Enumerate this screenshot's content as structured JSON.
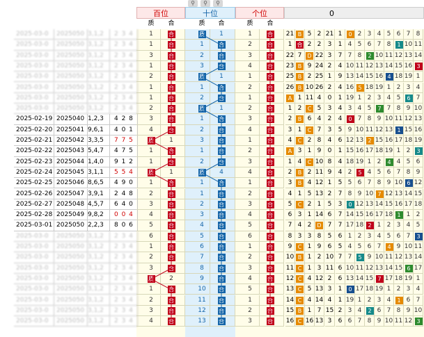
{
  "toolbar": {
    "zoom_out_icon": "zoom-out-icon",
    "zoom_in_icon": "zoom-in-icon",
    "zoom_reset_icon": "zoom-reset-icon"
  },
  "headers": {
    "bai": "百位",
    "shi": "十位",
    "ge": "个位",
    "zero": "0"
  },
  "sub": {
    "zhi": "质",
    "he": "合"
  },
  "rows": [
    {
      "date": "",
      "issue": "",
      "nums": "",
      "tri": "",
      "hidden": true
    },
    {
      "date": "",
      "issue": "",
      "nums": "",
      "tri": "",
      "hidden": true
    },
    {
      "date": "",
      "issue": "",
      "nums": "",
      "tri": "",
      "hidden": true
    },
    {
      "date": "",
      "issue": "",
      "nums": "",
      "tri": "",
      "hidden": true
    },
    {
      "date": "",
      "issue": "",
      "nums": "",
      "tri": "",
      "hidden": true
    },
    {
      "date": "",
      "issue": "",
      "nums": "",
      "tri": "",
      "hidden": true
    },
    {
      "date": "",
      "issue": "",
      "nums": "",
      "tri": "",
      "hidden": true
    },
    {
      "date": "",
      "issue": "",
      "nums": "",
      "tri": "",
      "hidden": true
    },
    {
      "date": "2025-02-19",
      "issue": "2025040",
      "nums": "1,2,3",
      "tri": "4 2 8",
      "hidden": false,
      "red": false
    },
    {
      "date": "2025-02-20",
      "issue": "2025041",
      "nums": "9,6,1",
      "tri": "4 0 1",
      "hidden": false,
      "red": false
    },
    {
      "date": "2025-02-21",
      "issue": "2025042",
      "nums": "3,3,5",
      "tri": "7 7 5",
      "hidden": false,
      "red": true
    },
    {
      "date": "2025-02-22",
      "issue": "2025043",
      "nums": "5,4,7",
      "tri": "4 7 5",
      "hidden": false,
      "red": false
    },
    {
      "date": "2025-02-23",
      "issue": "2025044",
      "nums": "1,4,0",
      "tri": "9 1 2",
      "hidden": false,
      "red": false
    },
    {
      "date": "2025-02-24",
      "issue": "2025045",
      "nums": "3,1,1",
      "tri": "5 5 4",
      "hidden": false,
      "red": true
    },
    {
      "date": "2025-02-25",
      "issue": "2025046",
      "nums": "8,6,5",
      "tri": "4 9 0",
      "hidden": false,
      "red": false
    },
    {
      "date": "2025-02-26",
      "issue": "2025047",
      "nums": "3,9,1",
      "tri": "2 4 8",
      "hidden": false,
      "red": false
    },
    {
      "date": "2025-02-27",
      "issue": "2025048",
      "nums": "4,5,7",
      "tri": "6 4 0",
      "hidden": false,
      "red": false
    },
    {
      "date": "2025-02-28",
      "issue": "2025049",
      "nums": "9,8,2",
      "tri": "0 0 4",
      "hidden": false,
      "red": true
    },
    {
      "date": "2025-03-01",
      "issue": "2025050",
      "nums": "2,2,3",
      "tri": "8 0 6",
      "hidden": false,
      "red": false
    },
    {
      "date": "",
      "issue": "",
      "nums": "",
      "tri": "",
      "hidden": true
    },
    {
      "date": "",
      "issue": "",
      "nums": "",
      "tri": "",
      "hidden": true
    },
    {
      "date": "",
      "issue": "",
      "nums": "",
      "tri": "",
      "hidden": true
    },
    {
      "date": "",
      "issue": "",
      "nums": "",
      "tri": "",
      "hidden": true
    },
    {
      "date": "",
      "issue": "",
      "nums": "",
      "tri": "",
      "hidden": true
    },
    {
      "date": "",
      "issue": "",
      "nums": "",
      "tri": "",
      "hidden": true
    },
    {
      "date": "",
      "issue": "",
      "nums": "",
      "tri": "",
      "hidden": true
    },
    {
      "date": "",
      "issue": "",
      "nums": "",
      "tri": "",
      "hidden": true
    },
    {
      "date": "",
      "issue": "",
      "nums": "",
      "tri": "",
      "hidden": true
    }
  ],
  "bai": [
    [
      1,
      "合"
    ],
    [
      1,
      "合"
    ],
    [
      3,
      "2"
    ],
    [
      1,
      "合"
    ],
    [
      2,
      "合"
    ],
    [
      1,
      "合"
    ],
    [
      1,
      "合"
    ],
    [
      2,
      "合"
    ],
    [
      3,
      "合"
    ],
    [
      4,
      "1"
    ],
    [
      "质",
      "1"
    ],
    [
      1,
      "合"
    ],
    [
      1,
      "合"
    ],
    [
      "质",
      "1"
    ],
    [
      1,
      "合"
    ],
    [
      2,
      "合"
    ],
    [
      3,
      "合"
    ],
    [
      4,
      "合"
    ],
    [
      5,
      "合"
    ],
    [
      6,
      "3"
    ],
    [
      1,
      "合"
    ],
    [
      2,
      "合"
    ],
    [
      3,
      "合"
    ],
    [
      "质",
      "2"
    ],
    [
      1,
      "3"
    ],
    [
      2,
      "合"
    ],
    [
      3,
      "合"
    ],
    [
      4,
      "合"
    ],
    [
      1,
      "合"
    ]
  ],
  "bai_first": [
    [
      "质",
      "2"
    ]
  ],
  "shi": [
    [
      "质",
      "1"
    ],
    [
      1,
      "合"
    ],
    [
      2,
      "合"
    ],
    [
      3,
      "合"
    ],
    [
      "质",
      "1"
    ],
    [
      1,
      "合"
    ],
    [
      2,
      "合"
    ],
    [
      "质",
      "1"
    ],
    [
      1,
      "合"
    ],
    [
      2,
      "合"
    ],
    [
      3,
      "合"
    ],
    [
      1,
      "合"
    ],
    [
      2,
      "合"
    ],
    [
      "质",
      "4"
    ],
    [
      1,
      "合"
    ],
    [
      1,
      "合"
    ],
    [
      2,
      "合"
    ],
    [
      3,
      "合"
    ],
    [
      4,
      "合"
    ],
    [
      5,
      "合"
    ],
    [
      6,
      "合"
    ],
    [
      7,
      "合"
    ],
    [
      8,
      "合"
    ],
    [
      9,
      "合"
    ],
    [
      10,
      "合"
    ],
    [
      11,
      "合"
    ],
    [
      12,
      "合"
    ],
    [
      13,
      "合"
    ],
    [
      14,
      "合"
    ]
  ],
  "ge": [
    [
      1,
      "合"
    ],
    [
      2,
      "合"
    ],
    [
      3,
      "合"
    ],
    [
      4,
      "合"
    ],
    [
      1,
      "2"
    ],
    [
      2,
      "合"
    ],
    [
      1,
      "合"
    ],
    [
      2,
      "合"
    ],
    [
      3,
      "合"
    ],
    [
      4,
      "合"
    ],
    [
      1,
      "合"
    ],
    [
      2,
      "合"
    ],
    [
      3,
      "合"
    ],
    [
      4,
      "合"
    ],
    [
      1,
      "合"
    ],
    [
      2,
      "合"
    ],
    [
      3,
      "合"
    ],
    [
      4,
      "合"
    ],
    [
      5,
      "合"
    ],
    [
      6,
      "合"
    ],
    [
      1,
      "合"
    ],
    [
      2,
      "合"
    ],
    [
      3,
      "合"
    ],
    [
      4,
      "合"
    ],
    [
      5,
      "合"
    ],
    [
      1,
      "合"
    ],
    [
      2,
      "合"
    ],
    [
      3,
      "合"
    ],
    [
      4,
      "合"
    ]
  ],
  "right_rows": [
    [
      "21",
      "B",
      "5",
      "2",
      "21",
      "1"
    ],
    [
      "1",
      "合",
      "2",
      "2",
      "3",
      "1"
    ],
    [
      "22",
      "7",
      "D",
      "22",
      "3",
      "7"
    ],
    [
      "23",
      "B",
      "9",
      "24",
      "2",
      "4"
    ],
    [
      "25",
      "B",
      "2",
      "25",
      "1",
      "9"
    ],
    [
      "26",
      "B",
      "10",
      "26",
      "2",
      "4"
    ],
    [
      "A",
      "1",
      "11",
      "4",
      "0",
      "1"
    ],
    [
      "1",
      "2",
      "C",
      "5",
      "3",
      "4"
    ],
    [
      "2",
      "B",
      "6",
      "4",
      "2",
      "4"
    ],
    [
      "3",
      "1",
      "C",
      "7",
      "3",
      "5"
    ],
    [
      "4",
      "C",
      "2",
      "8",
      "4",
      "6"
    ],
    [
      "A",
      "3",
      "1",
      "9",
      "0",
      "1"
    ],
    [
      "1",
      "4",
      "C",
      "10",
      "8",
      "4"
    ],
    [
      "2",
      "B",
      "2",
      "11",
      "9",
      "4"
    ],
    [
      "3",
      "B",
      "4",
      "12",
      "1",
      "5"
    ],
    [
      "4",
      "1",
      "5",
      "13",
      "2",
      "7"
    ],
    [
      "5",
      "C",
      "2",
      "1",
      "5",
      "3"
    ],
    [
      "6",
      "3",
      "1",
      "14",
      "6",
      "7"
    ],
    [
      "7",
      "4",
      "2",
      "D",
      "7",
      "7"
    ],
    [
      "8",
      "3",
      "3",
      "8",
      "5",
      "6"
    ],
    [
      "9",
      "C",
      "1",
      "9",
      "6",
      "5"
    ],
    [
      "10",
      "B",
      "1",
      "2",
      "10",
      "7"
    ],
    [
      "11",
      "C",
      "1",
      "3",
      "11",
      "6"
    ],
    [
      "12",
      "C",
      "4",
      "12",
      "2",
      "6"
    ],
    [
      "13",
      "C",
      "5",
      "13",
      "3",
      "1"
    ],
    [
      "14",
      "C",
      "4",
      "14",
      "4",
      "1"
    ],
    [
      "15",
      "B",
      "1",
      "7",
      "15",
      "2"
    ],
    [
      "16",
      "C",
      "16",
      "13",
      "3",
      "6"
    ],
    [
      "17",
      "C",
      "9",
      "17",
      "14",
      "5"
    ]
  ]
}
